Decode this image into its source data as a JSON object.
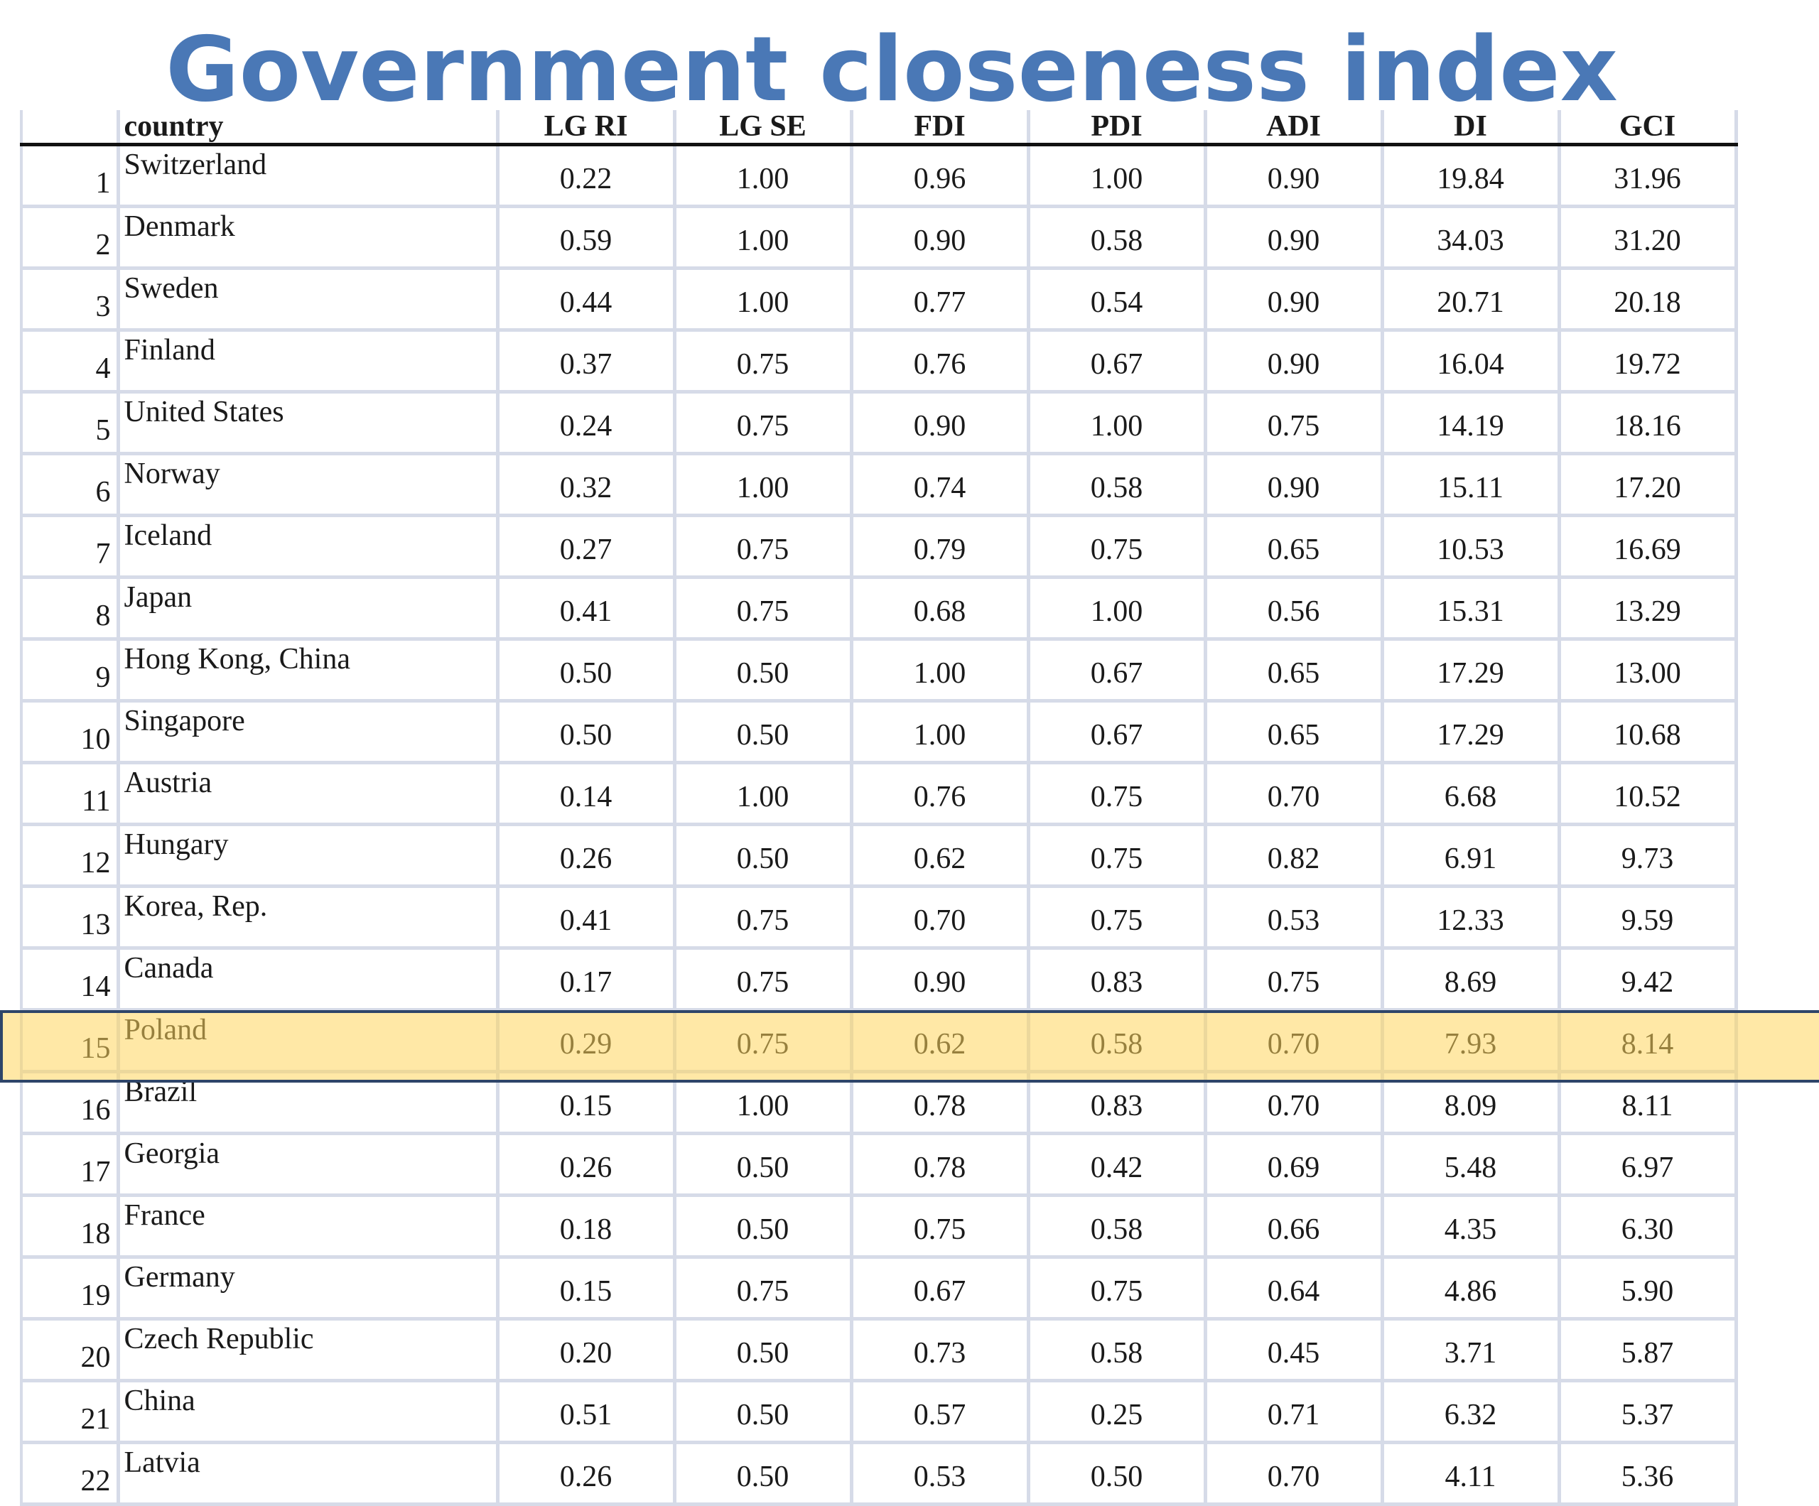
{
  "title": "Government closeness index",
  "table": {
    "headers": {
      "rank": "",
      "country": "country",
      "lg_ri": "LG RI",
      "lg_se": "LG SE",
      "fdi": "FDI",
      "pdi": "PDI",
      "adi": "ADI",
      "di": "DI",
      "gci": "GCI"
    },
    "rows": [
      {
        "rank": "1",
        "country": "Switzerland",
        "lg_ri": "0.22",
        "lg_se": "1.00",
        "fdi": "0.96",
        "pdi": "1.00",
        "adi": "0.90",
        "di": "19.84",
        "gci": "31.96"
      },
      {
        "rank": "2",
        "country": "Denmark",
        "lg_ri": "0.59",
        "lg_se": "1.00",
        "fdi": "0.90",
        "pdi": "0.58",
        "adi": "0.90",
        "di": "34.03",
        "gci": "31.20"
      },
      {
        "rank": "3",
        "country": "Sweden",
        "lg_ri": "0.44",
        "lg_se": "1.00",
        "fdi": "0.77",
        "pdi": "0.54",
        "adi": "0.90",
        "di": "20.71",
        "gci": "20.18"
      },
      {
        "rank": "4",
        "country": "Finland",
        "lg_ri": "0.37",
        "lg_se": "0.75",
        "fdi": "0.76",
        "pdi": "0.67",
        "adi": "0.90",
        "di": "16.04",
        "gci": "19.72"
      },
      {
        "rank": "5",
        "country": "United States",
        "lg_ri": "0.24",
        "lg_se": "0.75",
        "fdi": "0.90",
        "pdi": "1.00",
        "adi": "0.75",
        "di": "14.19",
        "gci": "18.16"
      },
      {
        "rank": "6",
        "country": "Norway",
        "lg_ri": "0.32",
        "lg_se": "1.00",
        "fdi": "0.74",
        "pdi": "0.58",
        "adi": "0.90",
        "di": "15.11",
        "gci": "17.20"
      },
      {
        "rank": "7",
        "country": "Iceland",
        "lg_ri": "0.27",
        "lg_se": "0.75",
        "fdi": "0.79",
        "pdi": "0.75",
        "adi": "0.65",
        "di": "10.53",
        "gci": "16.69"
      },
      {
        "rank": "8",
        "country": "Japan",
        "lg_ri": "0.41",
        "lg_se": "0.75",
        "fdi": "0.68",
        "pdi": "1.00",
        "adi": "0.56",
        "di": "15.31",
        "gci": "13.29"
      },
      {
        "rank": "9",
        "country": "Hong Kong, China",
        "lg_ri": "0.50",
        "lg_se": "0.50",
        "fdi": "1.00",
        "pdi": "0.67",
        "adi": "0.65",
        "di": "17.29",
        "gci": "13.00"
      },
      {
        "rank": "10",
        "country": "Singapore",
        "lg_ri": "0.50",
        "lg_se": "0.50",
        "fdi": "1.00",
        "pdi": "0.67",
        "adi": "0.65",
        "di": "17.29",
        "gci": "10.68"
      },
      {
        "rank": "11",
        "country": "Austria",
        "lg_ri": "0.14",
        "lg_se": "1.00",
        "fdi": "0.76",
        "pdi": "0.75",
        "adi": "0.70",
        "di": "6.68",
        "gci": "10.52"
      },
      {
        "rank": "12",
        "country": "Hungary",
        "lg_ri": "0.26",
        "lg_se": "0.50",
        "fdi": "0.62",
        "pdi": "0.75",
        "adi": "0.82",
        "di": "6.91",
        "gci": "9.73"
      },
      {
        "rank": "13",
        "country": "Korea, Rep.",
        "lg_ri": "0.41",
        "lg_se": "0.75",
        "fdi": "0.70",
        "pdi": "0.75",
        "adi": "0.53",
        "di": "12.33",
        "gci": "9.59"
      },
      {
        "rank": "14",
        "country": "Canada",
        "lg_ri": "0.17",
        "lg_se": "0.75",
        "fdi": "0.90",
        "pdi": "0.83",
        "adi": "0.75",
        "di": "8.69",
        "gci": "9.42"
      },
      {
        "rank": "15",
        "country": "Poland",
        "lg_ri": "0.29",
        "lg_se": "0.75",
        "fdi": "0.62",
        "pdi": "0.58",
        "adi": "0.70",
        "di": "7.93",
        "gci": "8.14"
      },
      {
        "rank": "16",
        "country": "Brazil",
        "lg_ri": "0.15",
        "lg_se": "1.00",
        "fdi": "0.78",
        "pdi": "0.83",
        "adi": "0.70",
        "di": "8.09",
        "gci": "8.11"
      },
      {
        "rank": "17",
        "country": "Georgia",
        "lg_ri": "0.26",
        "lg_se": "0.50",
        "fdi": "0.78",
        "pdi": "0.42",
        "adi": "0.69",
        "di": "5.48",
        "gci": "6.97",
        "highlighted": true
      },
      {
        "rank": "18",
        "country": "France",
        "lg_ri": "0.18",
        "lg_se": "0.50",
        "fdi": "0.75",
        "pdi": "0.58",
        "adi": "0.66",
        "di": "4.35",
        "gci": "6.30"
      },
      {
        "rank": "19",
        "country": "Germany",
        "lg_ri": "0.15",
        "lg_se": "0.75",
        "fdi": "0.67",
        "pdi": "0.75",
        "adi": "0.64",
        "di": "4.86",
        "gci": "5.90"
      },
      {
        "rank": "20",
        "country": "Czech Republic",
        "lg_ri": "0.20",
        "lg_se": "0.50",
        "fdi": "0.73",
        "pdi": "0.58",
        "adi": "0.45",
        "di": "3.71",
        "gci": "5.87"
      },
      {
        "rank": "21",
        "country": "China",
        "lg_ri": "0.51",
        "lg_se": "0.50",
        "fdi": "0.57",
        "pdi": "0.25",
        "adi": "0.71",
        "di": "6.32",
        "gci": "5.37"
      },
      {
        "rank": "22",
        "country": "Latvia",
        "lg_ri": "0.26",
        "lg_se": "0.50",
        "fdi": "0.53",
        "pdi": "0.50",
        "adi": "0.70",
        "di": "4.11",
        "gci": "5.36"
      }
    ]
  },
  "colors": {
    "title": "#4a78b6",
    "grid": "#d6dbe8",
    "highlight_fill": "#ffd65c",
    "highlight_border": "#2e4569"
  }
}
